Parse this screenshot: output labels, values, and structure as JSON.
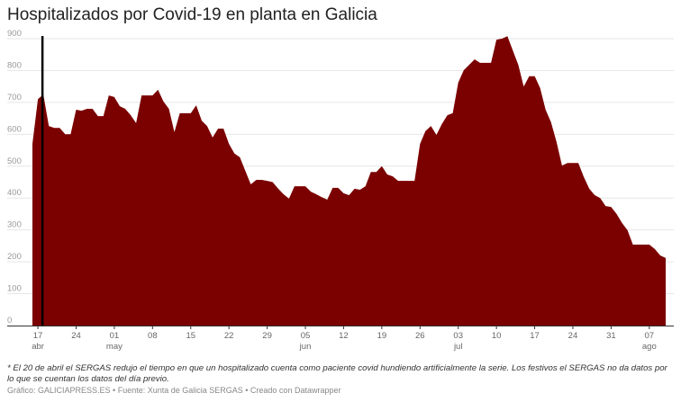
{
  "title": "Hospitalizados por Covid-19 en planta en Galicia",
  "note": "* El 20 de abril el SERGAS redujo el tiempo en que un hospitalizado cuenta como paciente covid hundiendo artificialmente la serie. Los festivos el SERGAS no da datos por lo que se cuentan los datos del día previo.",
  "credits": "Gráfico: GALICIAPRESS.ES • Fuente: Xunta de Galicia SERGAS • Creado con Datawrapper",
  "colors": {
    "area": "#7b0000",
    "marker": "#000000",
    "grid": "#e6e6e6"
  },
  "chart_data": {
    "type": "area",
    "title": "Hospitalizados por Covid-19 en planta en Galicia",
    "ylim": [
      0,
      900
    ],
    "yticks": [
      0,
      100,
      200,
      300,
      400,
      500,
      600,
      700,
      800,
      900
    ],
    "grid": true,
    "xticks": [
      {
        "date": "04-17",
        "label": "17",
        "sub": "abr"
      },
      {
        "date": "04-24",
        "label": "24",
        "sub": ""
      },
      {
        "date": "05-01",
        "label": "01",
        "sub": "may"
      },
      {
        "date": "05-08",
        "label": "08",
        "sub": ""
      },
      {
        "date": "05-15",
        "label": "15",
        "sub": ""
      },
      {
        "date": "05-22",
        "label": "22",
        "sub": ""
      },
      {
        "date": "05-29",
        "label": "29",
        "sub": ""
      },
      {
        "date": "06-05",
        "label": "05",
        "sub": "jun"
      },
      {
        "date": "06-12",
        "label": "12",
        "sub": ""
      },
      {
        "date": "06-19",
        "label": "19",
        "sub": ""
      },
      {
        "date": "06-26",
        "label": "26",
        "sub": ""
      },
      {
        "date": "07-03",
        "label": "03",
        "sub": "jul"
      },
      {
        "date": "07-10",
        "label": "10",
        "sub": ""
      },
      {
        "date": "07-17",
        "label": "17",
        "sub": ""
      },
      {
        "date": "07-24",
        "label": "24",
        "sub": ""
      },
      {
        "date": "07-31",
        "label": "31",
        "sub": ""
      },
      {
        "date": "08-07",
        "label": "07",
        "sub": "ago"
      }
    ],
    "marker_date": "04-18",
    "dates": [
      "04-16",
      "04-17",
      "04-18",
      "04-19",
      "04-20",
      "04-21",
      "04-22",
      "04-23",
      "04-24",
      "04-25",
      "04-26",
      "04-27",
      "04-28",
      "04-29",
      "04-30",
      "05-01",
      "05-02",
      "05-03",
      "05-04",
      "05-05",
      "05-06",
      "05-07",
      "05-08",
      "05-09",
      "05-10",
      "05-11",
      "05-12",
      "05-13",
      "05-14",
      "05-15",
      "05-16",
      "05-17",
      "05-18",
      "05-19",
      "05-20",
      "05-21",
      "05-22",
      "05-23",
      "05-24",
      "05-25",
      "05-26",
      "05-27",
      "05-28",
      "05-29",
      "05-30",
      "05-31",
      "06-01",
      "06-02",
      "06-03",
      "06-04",
      "06-05",
      "06-06",
      "06-07",
      "06-08",
      "06-09",
      "06-10",
      "06-11",
      "06-12",
      "06-13",
      "06-14",
      "06-15",
      "06-16",
      "06-17",
      "06-18",
      "06-19",
      "06-20",
      "06-21",
      "06-22",
      "06-23",
      "06-24",
      "06-25",
      "06-26",
      "06-27",
      "06-28",
      "06-29",
      "06-30",
      "07-01",
      "07-02",
      "07-03",
      "07-04",
      "07-05",
      "07-06",
      "07-07",
      "07-08",
      "07-09",
      "07-10",
      "07-11",
      "07-12",
      "07-13",
      "07-14",
      "07-15",
      "07-16",
      "07-17",
      "07-18",
      "07-19",
      "07-20",
      "07-21",
      "07-22",
      "07-23",
      "07-24",
      "07-25",
      "07-26",
      "07-27",
      "07-28",
      "07-29",
      "07-30",
      "07-31",
      "08-01",
      "08-02",
      "08-03",
      "08-04",
      "08-05",
      "08-06",
      "08-07",
      "08-08",
      "08-09",
      "08-10"
    ],
    "values": [
      570,
      710,
      725,
      626,
      620,
      620,
      600,
      600,
      677,
      674,
      680,
      680,
      657,
      657,
      722,
      717,
      688,
      680,
      660,
      635,
      722,
      722,
      722,
      740,
      703,
      680,
      607,
      666,
      666,
      666,
      691,
      643,
      626,
      590,
      618,
      618,
      570,
      540,
      528,
      485,
      443,
      457,
      457,
      454,
      450,
      430,
      412,
      398,
      437,
      437,
      437,
      420,
      412,
      403,
      395,
      432,
      432,
      415,
      409,
      429,
      426,
      437,
      482,
      482,
      500,
      474,
      468,
      454,
      454,
      454,
      454,
      570,
      610,
      626,
      598,
      632,
      660,
      666,
      762,
      801,
      818,
      835,
      824,
      824,
      824,
      897,
      900,
      908,
      863,
      818,
      750,
      782,
      782,
      745,
      677,
      638,
      576,
      502,
      510,
      510,
      510,
      466,
      429,
      409,
      400,
      375,
      372,
      350,
      322,
      299,
      254,
      254,
      254,
      254,
      240,
      220,
      212
    ]
  }
}
